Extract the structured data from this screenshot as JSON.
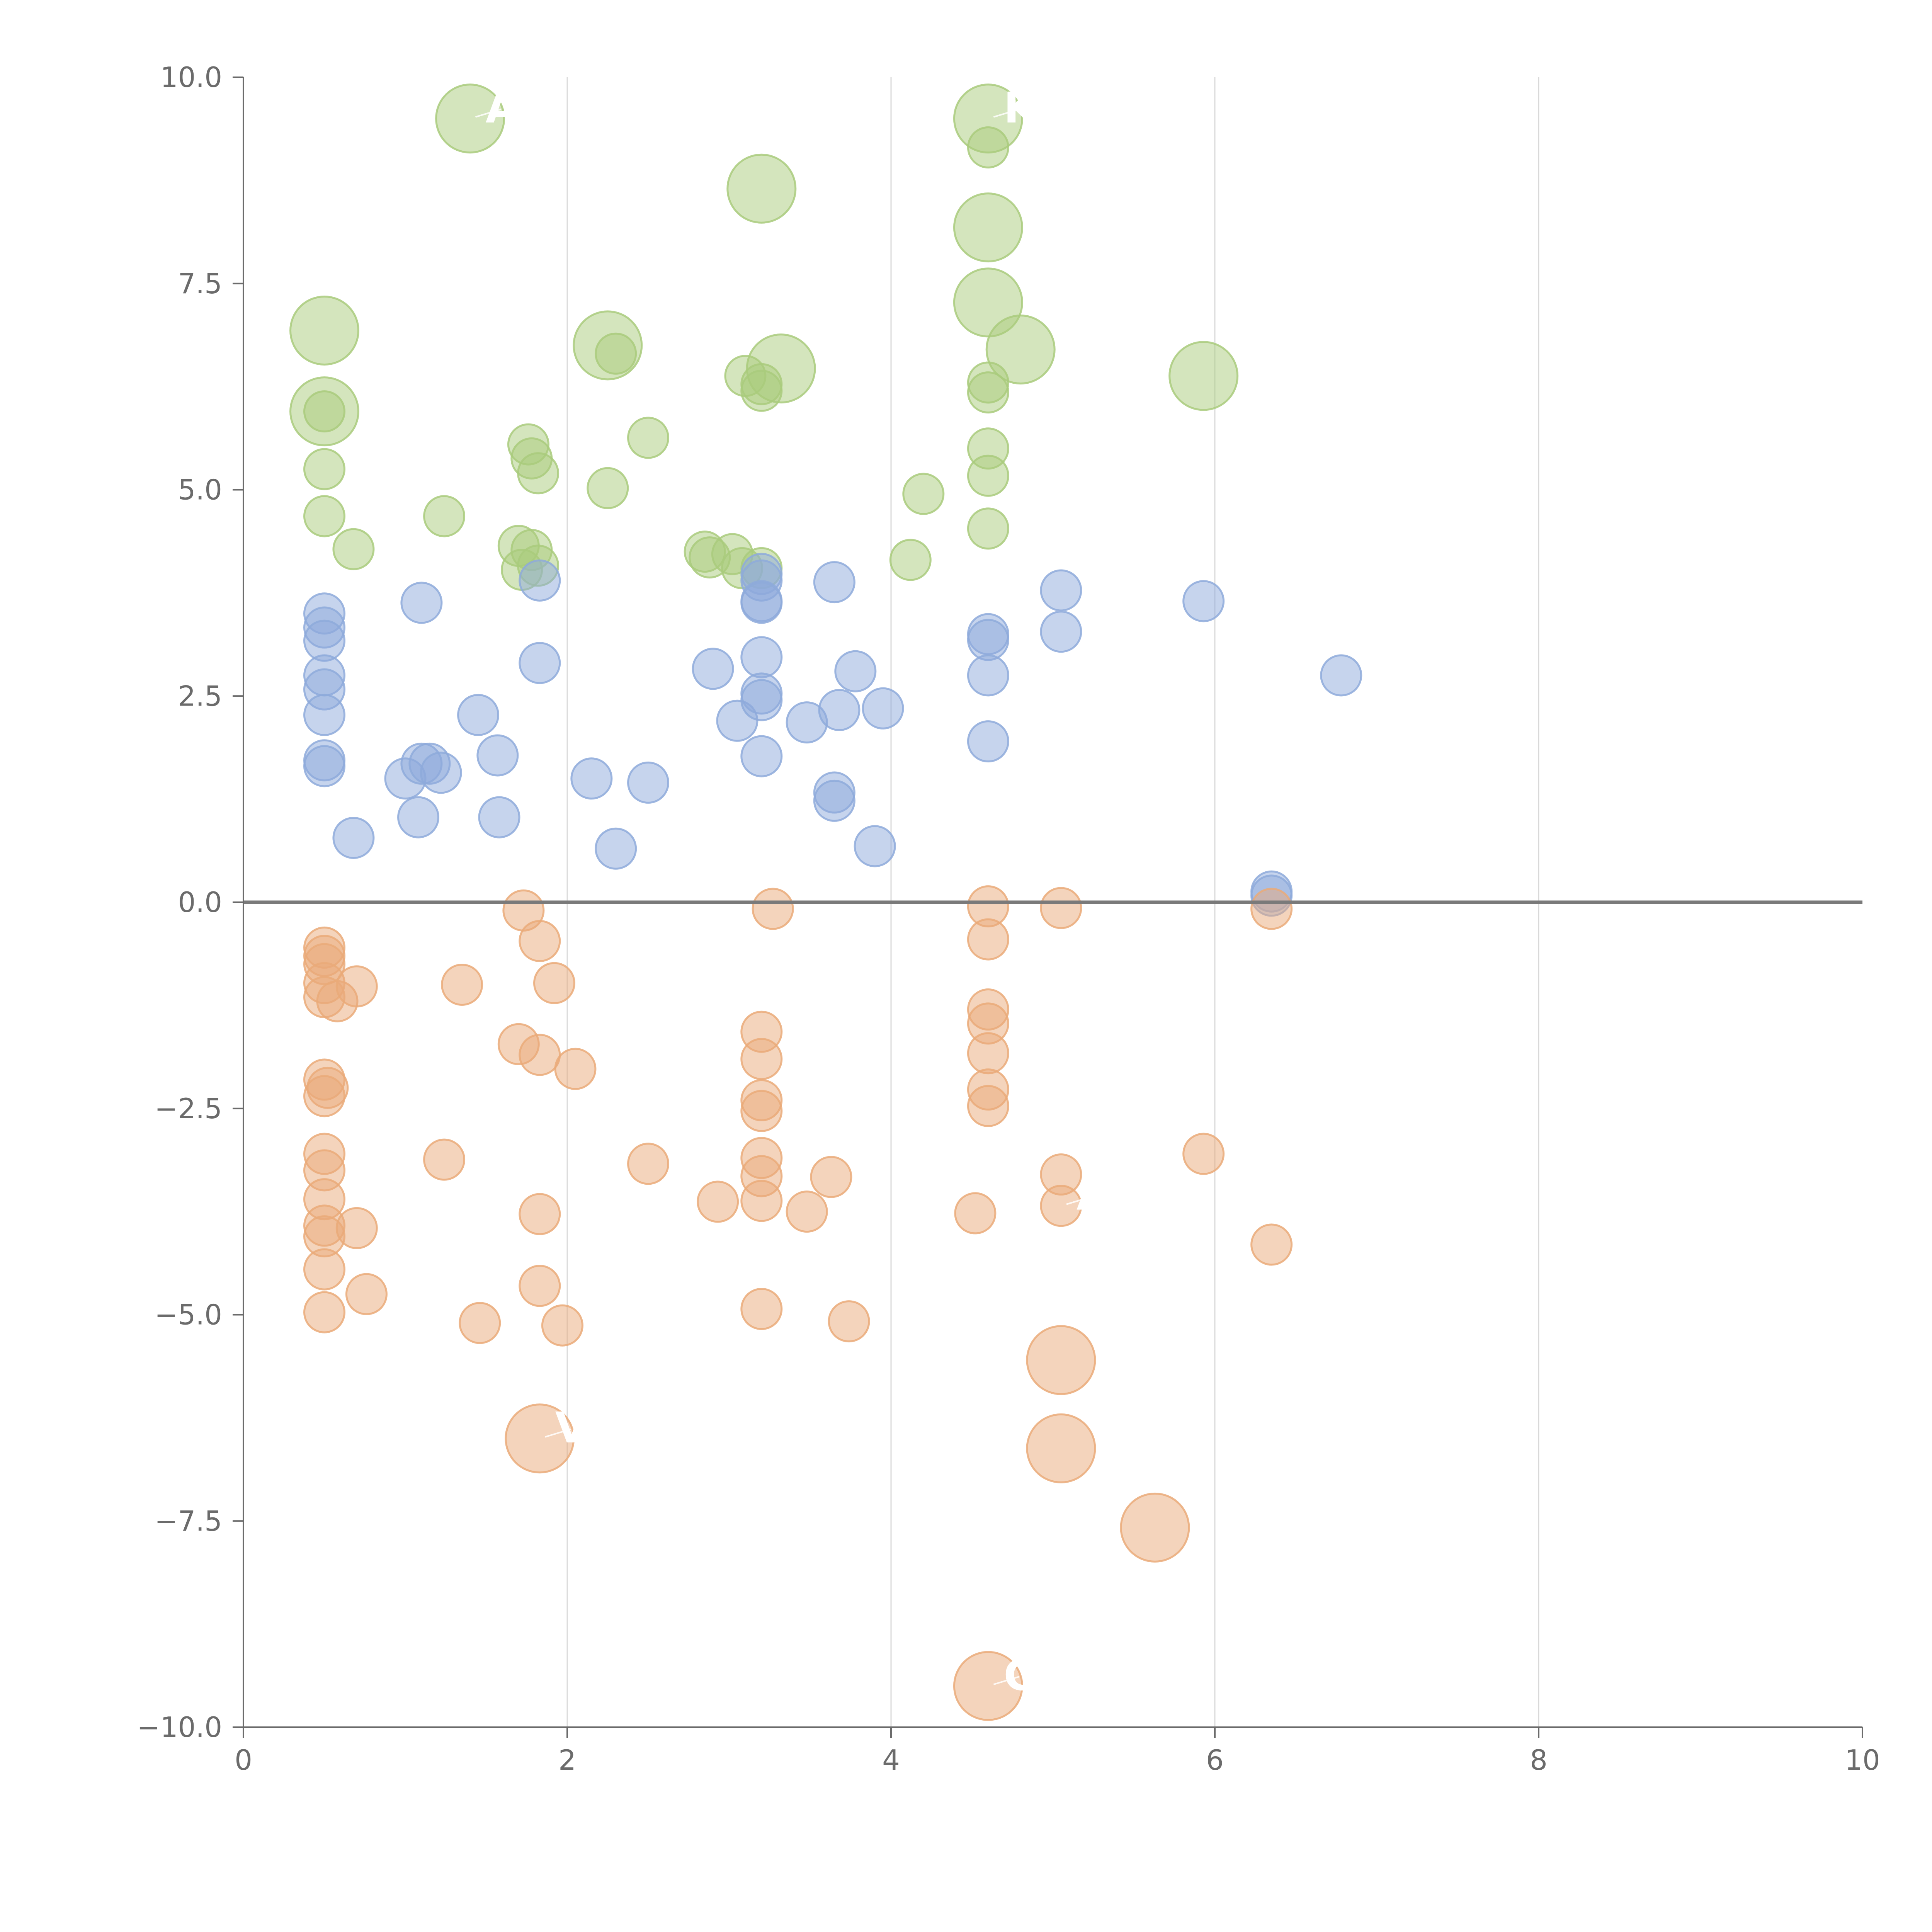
{
  "chart_data": {
    "type": "scatter",
    "title": "",
    "xlabel": "",
    "ylabel": "",
    "xlim": [
      0,
      10
    ],
    "ylim": [
      -10,
      10
    ],
    "grid": "vertical",
    "x_ticks": [
      0,
      2,
      4,
      6,
      8,
      10
    ],
    "x_tick_labels": [
      "0",
      "2",
      "4",
      "6",
      "8",
      "10"
    ],
    "y_ticks": [
      -10,
      -7.5,
      -5,
      -2.5,
      0,
      2.5,
      5,
      7.5,
      10
    ],
    "y_tick_labels": [
      "−10.0",
      "−7.5",
      "−5.0",
      "−2.5",
      "0.0",
      "2.5",
      "5.0",
      "7.5",
      "10.0"
    ],
    "reference_line_y": 0,
    "series": [
      {
        "name": "green",
        "color": "#a9cb7c",
        "points": [
          {
            "x": 1.4,
            "y": 9.5,
            "size": 2
          },
          {
            "x": 3.2,
            "y": 8.65,
            "size": 2
          },
          {
            "x": 4.6,
            "y": 9.5,
            "size": 2
          },
          {
            "x": 4.6,
            "y": 9.15,
            "size": 0
          },
          {
            "x": 4.6,
            "y": 8.18,
            "size": 2
          },
          {
            "x": 4.6,
            "y": 7.27,
            "size": 2
          },
          {
            "x": 4.8,
            "y": 6.7,
            "size": 2
          },
          {
            "x": 5.93,
            "y": 6.38,
            "size": 2
          },
          {
            "x": 0.5,
            "y": 6.93,
            "size": 2
          },
          {
            "x": 0.5,
            "y": 5.95,
            "size": 2
          },
          {
            "x": 0.5,
            "y": 5.95,
            "size": 0
          },
          {
            "x": 0.5,
            "y": 5.25,
            "size": 0
          },
          {
            "x": 0.5,
            "y": 4.68,
            "size": 0
          },
          {
            "x": 0.68,
            "y": 4.28,
            "size": 0
          },
          {
            "x": 1.24,
            "y": 4.68,
            "size": 0
          },
          {
            "x": 2.25,
            "y": 6.75,
            "size": 2
          },
          {
            "x": 2.3,
            "y": 6.65,
            "size": 0
          },
          {
            "x": 3.32,
            "y": 6.47,
            "size": 2
          },
          {
            "x": 3.1,
            "y": 6.38,
            "size": 0
          },
          {
            "x": 3.2,
            "y": 6.28,
            "size": 0
          },
          {
            "x": 3.2,
            "y": 6.2,
            "size": 0
          },
          {
            "x": 2.5,
            "y": 5.63,
            "size": 0
          },
          {
            "x": 1.76,
            "y": 5.55,
            "size": 0
          },
          {
            "x": 1.78,
            "y": 5.38,
            "size": 0
          },
          {
            "x": 1.82,
            "y": 5.2,
            "size": 0
          },
          {
            "x": 2.25,
            "y": 5.02,
            "size": 0
          },
          {
            "x": 1.7,
            "y": 4.32,
            "size": 0
          },
          {
            "x": 1.78,
            "y": 4.27,
            "size": 0
          },
          {
            "x": 1.72,
            "y": 4.03,
            "size": 0
          },
          {
            "x": 1.82,
            "y": 4.08,
            "size": 0
          },
          {
            "x": 2.85,
            "y": 4.25,
            "size": 0
          },
          {
            "x": 2.88,
            "y": 4.18,
            "size": 0
          },
          {
            "x": 3.02,
            "y": 4.22,
            "size": 0
          },
          {
            "x": 3.08,
            "y": 4.05,
            "size": 0
          },
          {
            "x": 3.2,
            "y": 4.05,
            "size": 0
          },
          {
            "x": 4.2,
            "y": 4.95,
            "size": 0
          },
          {
            "x": 4.12,
            "y": 4.15,
            "size": 0
          },
          {
            "x": 4.6,
            "y": 6.3,
            "size": 0
          },
          {
            "x": 4.6,
            "y": 6.18,
            "size": 0
          },
          {
            "x": 4.6,
            "y": 5.5,
            "size": 0
          },
          {
            "x": 4.6,
            "y": 5.17,
            "size": 0
          },
          {
            "x": 4.6,
            "y": 4.53,
            "size": 0
          }
        ]
      },
      {
        "name": "blue",
        "color": "#8eaadb",
        "points": [
          {
            "x": 0.5,
            "y": 3.5,
            "size": 0
          },
          {
            "x": 0.5,
            "y": 3.33,
            "size": 0
          },
          {
            "x": 0.5,
            "y": 3.17,
            "size": 0
          },
          {
            "x": 0.5,
            "y": 2.75,
            "size": 0
          },
          {
            "x": 0.5,
            "y": 2.58,
            "size": 0
          },
          {
            "x": 0.5,
            "y": 2.27,
            "size": 0
          },
          {
            "x": 0.5,
            "y": 1.72,
            "size": 0
          },
          {
            "x": 0.5,
            "y": 1.65,
            "size": 0
          },
          {
            "x": 0.68,
            "y": 0.78,
            "size": 0
          },
          {
            "x": 1.1,
            "y": 3.63,
            "size": 0
          },
          {
            "x": 1.0,
            "y": 1.5,
            "size": 0
          },
          {
            "x": 1.1,
            "y": 1.68,
            "size": 0
          },
          {
            "x": 1.15,
            "y": 1.68,
            "size": 0
          },
          {
            "x": 1.22,
            "y": 1.57,
            "size": 0
          },
          {
            "x": 1.08,
            "y": 1.03,
            "size": 0
          },
          {
            "x": 1.45,
            "y": 2.27,
            "size": 0
          },
          {
            "x": 1.57,
            "y": 1.78,
            "size": 0
          },
          {
            "x": 1.58,
            "y": 1.03,
            "size": 0
          },
          {
            "x": 1.83,
            "y": 3.9,
            "size": 0
          },
          {
            "x": 1.83,
            "y": 2.9,
            "size": 0
          },
          {
            "x": 2.15,
            "y": 1.5,
            "size": 0
          },
          {
            "x": 2.3,
            "y": 0.65,
            "size": 0
          },
          {
            "x": 2.5,
            "y": 1.45,
            "size": 0
          },
          {
            "x": 2.9,
            "y": 2.83,
            "size": 0
          },
          {
            "x": 3.05,
            "y": 2.2,
            "size": 0
          },
          {
            "x": 3.2,
            "y": 3.98,
            "size": 0
          },
          {
            "x": 3.2,
            "y": 3.9,
            "size": 0
          },
          {
            "x": 3.2,
            "y": 3.65,
            "size": 0
          },
          {
            "x": 3.2,
            "y": 3.63,
            "size": 0
          },
          {
            "x": 3.2,
            "y": 2.97,
            "size": 0
          },
          {
            "x": 3.2,
            "y": 2.53,
            "size": 0
          },
          {
            "x": 3.2,
            "y": 2.45,
            "size": 0
          },
          {
            "x": 3.2,
            "y": 1.77,
            "size": 0
          },
          {
            "x": 3.48,
            "y": 2.18,
            "size": 0
          },
          {
            "x": 3.65,
            "y": 3.88,
            "size": 0
          },
          {
            "x": 3.68,
            "y": 2.33,
            "size": 0
          },
          {
            "x": 3.78,
            "y": 2.8,
            "size": 0
          },
          {
            "x": 3.65,
            "y": 1.33,
            "size": 0
          },
          {
            "x": 3.65,
            "y": 1.23,
            "size": 0
          },
          {
            "x": 3.95,
            "y": 2.35,
            "size": 0
          },
          {
            "x": 3.9,
            "y": 0.68,
            "size": 0
          },
          {
            "x": 4.6,
            "y": 3.25,
            "size": 0
          },
          {
            "x": 4.6,
            "y": 3.18,
            "size": 0
          },
          {
            "x": 4.6,
            "y": 2.75,
            "size": 0
          },
          {
            "x": 4.6,
            "y": 1.95,
            "size": 0
          },
          {
            "x": 5.05,
            "y": 3.78,
            "size": 0
          },
          {
            "x": 5.05,
            "y": 3.28,
            "size": 0
          },
          {
            "x": 5.93,
            "y": 3.65,
            "size": 0
          },
          {
            "x": 6.35,
            "y": 0.13,
            "size": 0
          },
          {
            "x": 6.35,
            "y": 0.08,
            "size": 0
          },
          {
            "x": 6.78,
            "y": 2.75,
            "size": 0
          }
        ]
      },
      {
        "name": "orange",
        "color": "#eaaa79",
        "points": [
          {
            "x": 0.5,
            "y": -0.55,
            "size": 0
          },
          {
            "x": 0.5,
            "y": -0.65,
            "size": 0
          },
          {
            "x": 0.5,
            "y": -0.75,
            "size": 0
          },
          {
            "x": 0.5,
            "y": -0.98,
            "size": 0
          },
          {
            "x": 0.5,
            "y": -1.15,
            "size": 0
          },
          {
            "x": 0.58,
            "y": -1.2,
            "size": 0
          },
          {
            "x": 0.7,
            "y": -1.02,
            "size": 0
          },
          {
            "x": 0.5,
            "y": -2.15,
            "size": 0
          },
          {
            "x": 0.52,
            "y": -2.25,
            "size": 0
          },
          {
            "x": 0.5,
            "y": -2.35,
            "size": 0
          },
          {
            "x": 0.5,
            "y": -3.05,
            "size": 0
          },
          {
            "x": 0.5,
            "y": -3.25,
            "size": 0
          },
          {
            "x": 0.5,
            "y": -3.6,
            "size": 0
          },
          {
            "x": 0.5,
            "y": -3.92,
            "size": 0
          },
          {
            "x": 0.5,
            "y": -4.05,
            "size": 0
          },
          {
            "x": 0.7,
            "y": -3.95,
            "size": 0
          },
          {
            "x": 0.5,
            "y": -4.45,
            "size": 0
          },
          {
            "x": 0.5,
            "y": -4.97,
            "size": 0
          },
          {
            "x": 0.76,
            "y": -4.75,
            "size": 0
          },
          {
            "x": 1.35,
            "y": -1.0,
            "size": 0
          },
          {
            "x": 1.24,
            "y": -3.12,
            "size": 0
          },
          {
            "x": 1.46,
            "y": -5.1,
            "size": 0
          },
          {
            "x": 1.73,
            "y": -0.1,
            "size": 0
          },
          {
            "x": 1.83,
            "y": -0.47,
            "size": 0
          },
          {
            "x": 1.92,
            "y": -0.98,
            "size": 0
          },
          {
            "x": 1.7,
            "y": -1.72,
            "size": 0
          },
          {
            "x": 1.83,
            "y": -1.85,
            "size": 0
          },
          {
            "x": 2.05,
            "y": -2.02,
            "size": 0
          },
          {
            "x": 1.83,
            "y": -3.78,
            "size": 0
          },
          {
            "x": 1.83,
            "y": -4.65,
            "size": 0
          },
          {
            "x": 1.97,
            "y": -5.13,
            "size": 0
          },
          {
            "x": 1.83,
            "y": -6.5,
            "size": 2
          },
          {
            "x": 2.5,
            "y": -3.17,
            "size": 0
          },
          {
            "x": 2.93,
            "y": -3.63,
            "size": 0
          },
          {
            "x": 3.27,
            "y": -0.08,
            "size": 0
          },
          {
            "x": 3.2,
            "y": -1.57,
            "size": 0
          },
          {
            "x": 3.2,
            "y": -1.9,
            "size": 0
          },
          {
            "x": 3.2,
            "y": -2.4,
            "size": 0
          },
          {
            "x": 3.2,
            "y": -2.53,
            "size": 0
          },
          {
            "x": 3.2,
            "y": -3.1,
            "size": 0
          },
          {
            "x": 3.2,
            "y": -3.32,
            "size": 0
          },
          {
            "x": 3.2,
            "y": -3.62,
            "size": 0
          },
          {
            "x": 3.2,
            "y": -4.93,
            "size": 0
          },
          {
            "x": 3.48,
            "y": -3.75,
            "size": 0
          },
          {
            "x": 3.63,
            "y": -3.33,
            "size": 0
          },
          {
            "x": 3.74,
            "y": -5.08,
            "size": 0
          },
          {
            "x": 4.6,
            "y": -0.05,
            "size": 0
          },
          {
            "x": 4.6,
            "y": -0.45,
            "size": 0
          },
          {
            "x": 4.6,
            "y": -1.3,
            "size": 0
          },
          {
            "x": 4.6,
            "y": -1.47,
            "size": 0
          },
          {
            "x": 4.6,
            "y": -1.83,
            "size": 0
          },
          {
            "x": 4.6,
            "y": -2.27,
            "size": 0
          },
          {
            "x": 4.6,
            "y": -2.47,
            "size": 0
          },
          {
            "x": 4.52,
            "y": -3.77,
            "size": 0
          },
          {
            "x": 4.6,
            "y": -9.5,
            "size": 2
          },
          {
            "x": 5.05,
            "y": -0.07,
            "size": 0
          },
          {
            "x": 5.05,
            "y": -3.3,
            "size": 0
          },
          {
            "x": 5.05,
            "y": -3.68,
            "size": 0
          },
          {
            "x": 5.05,
            "y": -5.55,
            "size": 2
          },
          {
            "x": 5.05,
            "y": -6.62,
            "size": 2
          },
          {
            "x": 5.63,
            "y": -7.58,
            "size": 2
          },
          {
            "x": 5.93,
            "y": -3.05,
            "size": 0
          },
          {
            "x": 6.35,
            "y": -0.08,
            "size": 0
          },
          {
            "x": 6.35,
            "y": -4.15,
            "size": 0
          }
        ]
      }
    ],
    "annotations": [
      {
        "text": "A",
        "x": 1.4,
        "y": 9.5,
        "color": "#ffffff"
      },
      {
        "text": "K",
        "x": 4.6,
        "y": 9.5,
        "color": "#ffffff"
      },
      {
        "text": "A",
        "x": 5.05,
        "y": -3.68,
        "color": "#ffffff"
      },
      {
        "text": "V",
        "x": 1.83,
        "y": -6.5,
        "color": "#ffffff"
      },
      {
        "text": "C",
        "x": 4.6,
        "y": -9.5,
        "color": "#ffffff"
      }
    ]
  }
}
